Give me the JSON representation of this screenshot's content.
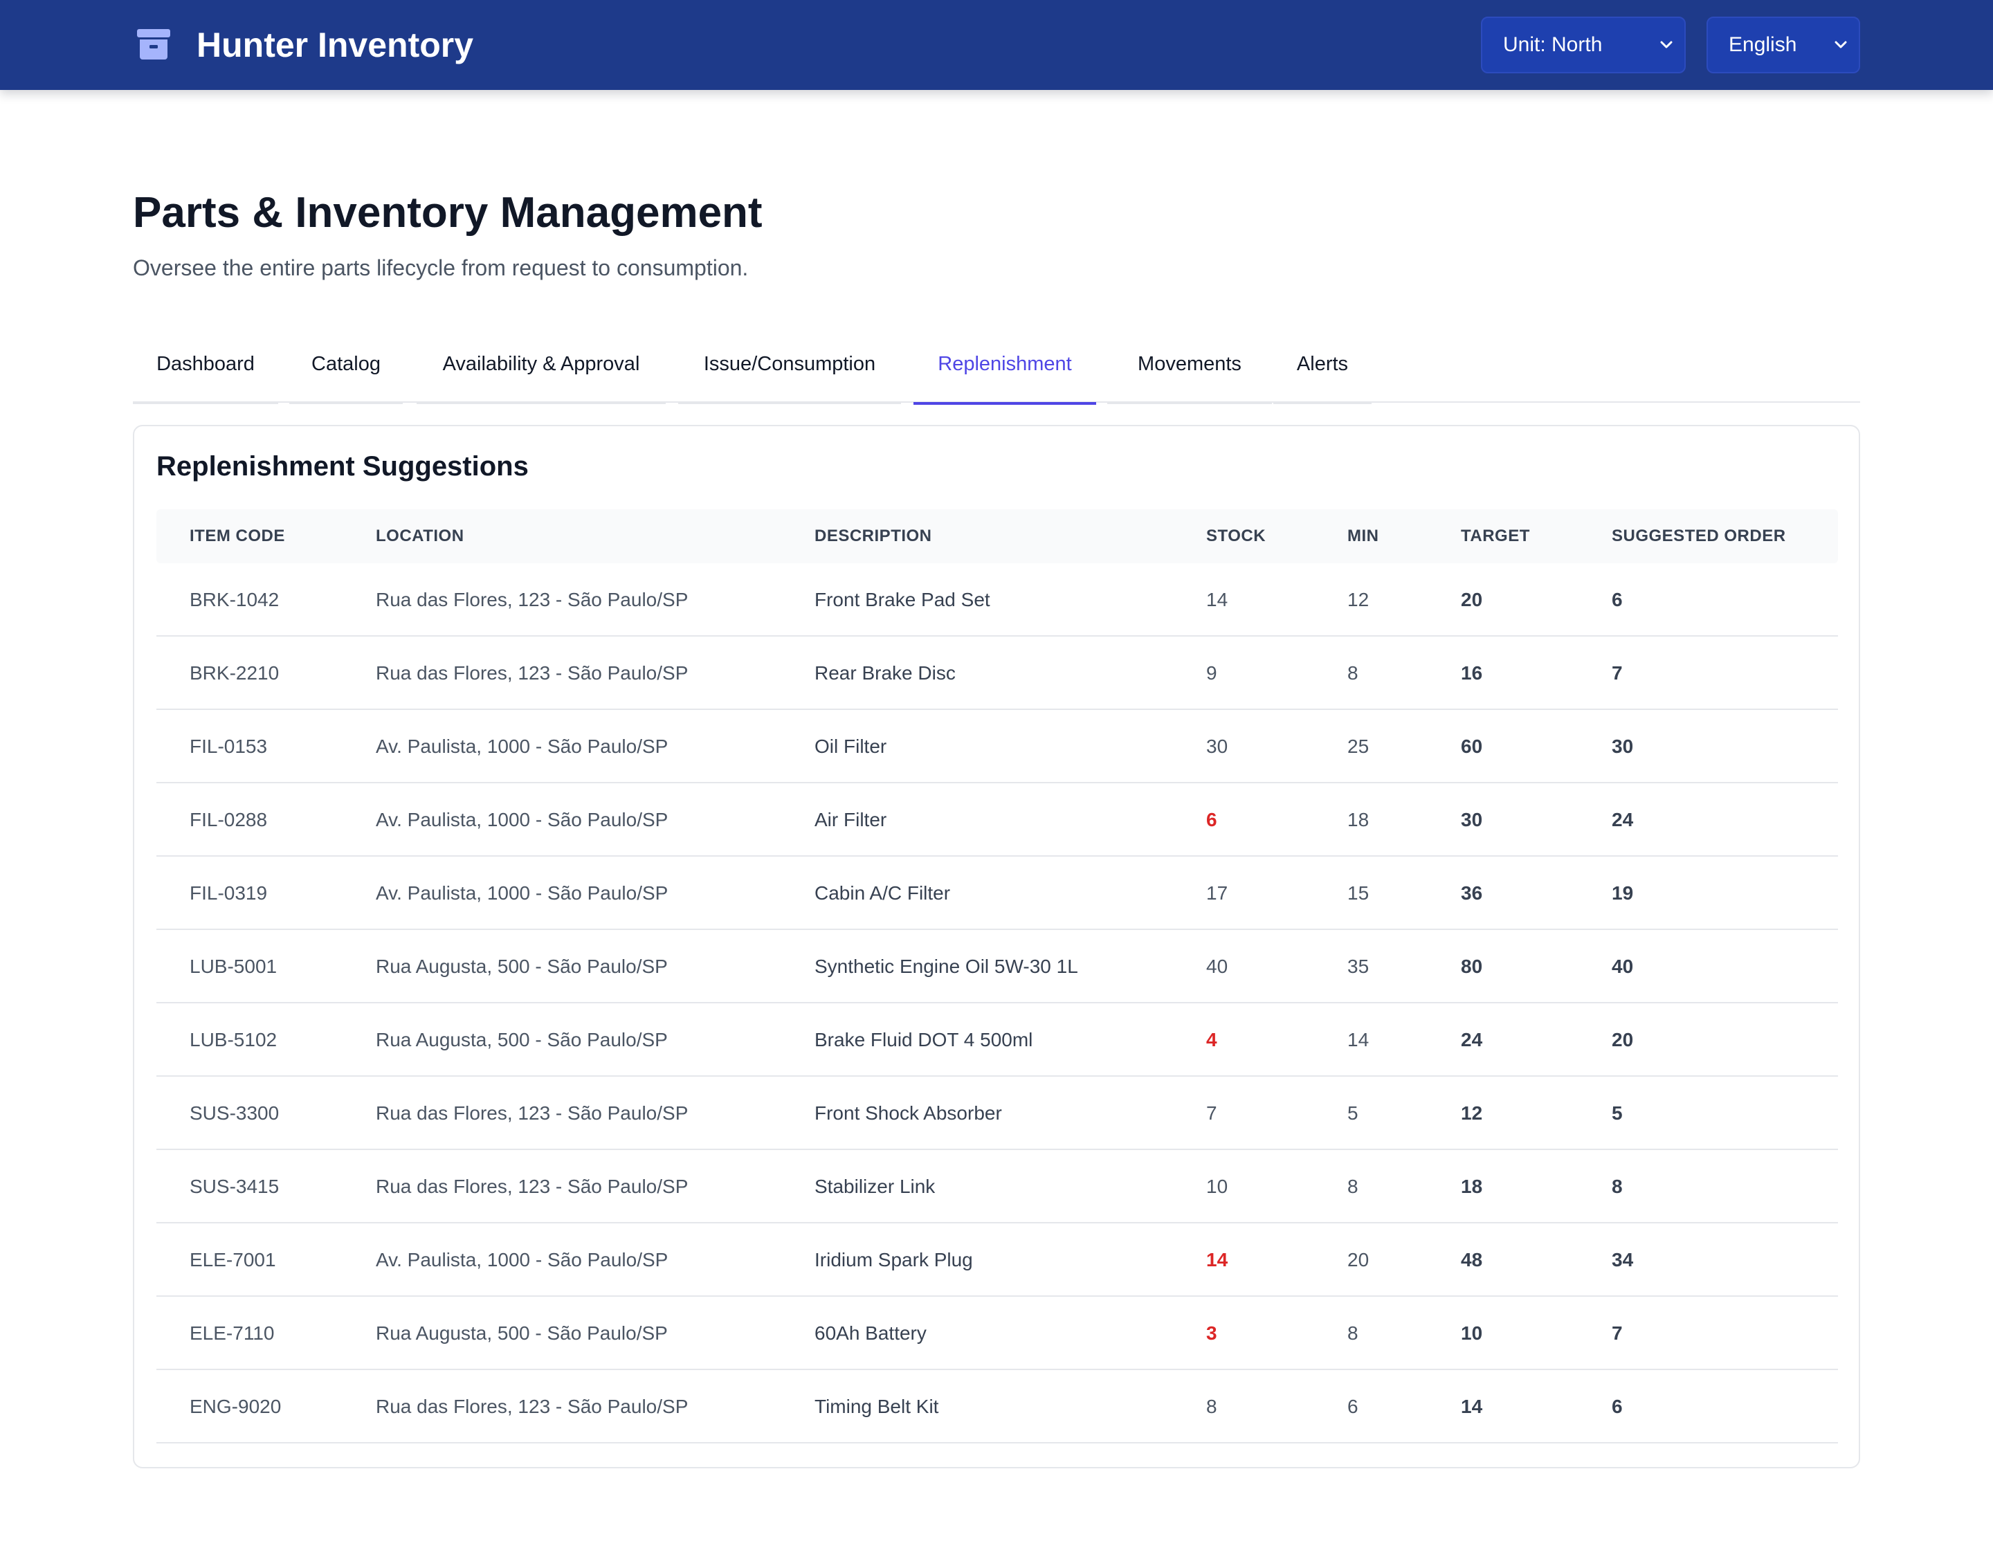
{
  "header": {
    "brand_title": "Hunter Inventory",
    "brand_icon": "archive-box-icon",
    "unit_select": "Unit: North",
    "language_select": "English"
  },
  "page": {
    "title": "Parts & Inventory Management",
    "subtitle": "Oversee the entire parts lifecycle from request to consumption."
  },
  "tabs": [
    {
      "label": "Dashboard"
    },
    {
      "label": "Catalog"
    },
    {
      "label": "Availability & Approval"
    },
    {
      "label": "Issue/Consumption"
    },
    {
      "label": "Replenishment",
      "active": true
    },
    {
      "label": "Movements"
    },
    {
      "label": "Alerts"
    }
  ],
  "card": {
    "title": "Replenishment Suggestions",
    "columns": [
      "ITEM CODE",
      "LOCATION",
      "DESCRIPTION",
      "STOCK",
      "MIN",
      "TARGET",
      "SUGGESTED ORDER"
    ],
    "rows": [
      {
        "code": "BRK-1042",
        "location": "Rua das Flores, 123 - São Paulo/SP",
        "description": "Front Brake Pad Set",
        "stock": "14",
        "min": "12",
        "target": "20",
        "suggested": "6",
        "low": false
      },
      {
        "code": "BRK-2210",
        "location": "Rua das Flores, 123 - São Paulo/SP",
        "description": "Rear Brake Disc",
        "stock": "9",
        "min": "8",
        "target": "16",
        "suggested": "7",
        "low": false
      },
      {
        "code": "FIL-0153",
        "location": "Av. Paulista, 1000 - São Paulo/SP",
        "description": "Oil Filter",
        "stock": "30",
        "min": "25",
        "target": "60",
        "suggested": "30",
        "low": false
      },
      {
        "code": "FIL-0288",
        "location": "Av. Paulista, 1000 - São Paulo/SP",
        "description": "Air Filter",
        "stock": "6",
        "min": "18",
        "target": "30",
        "suggested": "24",
        "low": true
      },
      {
        "code": "FIL-0319",
        "location": "Av. Paulista, 1000 - São Paulo/SP",
        "description": "Cabin A/C Filter",
        "stock": "17",
        "min": "15",
        "target": "36",
        "suggested": "19",
        "low": false
      },
      {
        "code": "LUB-5001",
        "location": "Rua Augusta, 500 - São Paulo/SP",
        "description": "Synthetic Engine Oil 5W-30 1L",
        "stock": "40",
        "min": "35",
        "target": "80",
        "suggested": "40",
        "low": false
      },
      {
        "code": "LUB-5102",
        "location": "Rua Augusta, 500 - São Paulo/SP",
        "description": "Brake Fluid DOT 4 500ml",
        "stock": "4",
        "min": "14",
        "target": "24",
        "suggested": "20",
        "low": true
      },
      {
        "code": "SUS-3300",
        "location": "Rua das Flores, 123 - São Paulo/SP",
        "description": "Front Shock Absorber",
        "stock": "7",
        "min": "5",
        "target": "12",
        "suggested": "5",
        "low": false
      },
      {
        "code": "SUS-3415",
        "location": "Rua das Flores, 123 - São Paulo/SP",
        "description": "Stabilizer Link",
        "stock": "10",
        "min": "8",
        "target": "18",
        "suggested": "8",
        "low": false
      },
      {
        "code": "ELE-7001",
        "location": "Av. Paulista, 1000 - São Paulo/SP",
        "description": "Iridium Spark Plug",
        "stock": "14",
        "min": "20",
        "target": "48",
        "suggested": "34",
        "low": true
      },
      {
        "code": "ELE-7110",
        "location": "Rua Augusta, 500 - São Paulo/SP",
        "description": "60Ah Battery",
        "stock": "3",
        "min": "8",
        "target": "10",
        "suggested": "7",
        "low": true
      },
      {
        "code": "ENG-9020",
        "location": "Rua das Flores, 123 - São Paulo/SP",
        "description": "Timing Belt Kit",
        "stock": "8",
        "min": "6",
        "target": "14",
        "suggested": "6",
        "low": false
      }
    ]
  },
  "colors": {
    "header_bg": "#1e3a8a",
    "accent": "#4f46e5",
    "low_stock": "#dc2626",
    "brand_icon": "#a5b4fc"
  }
}
